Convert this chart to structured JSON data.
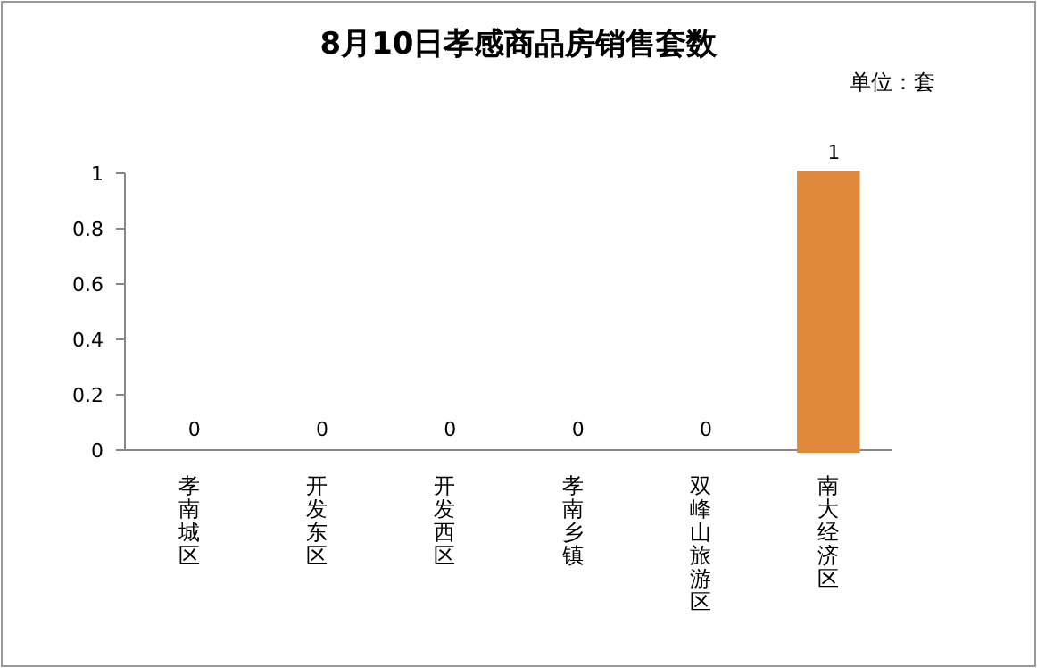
{
  "chart_data": {
    "type": "bar",
    "title": "8月10日孝感商品房销售套数",
    "annotations": [
      "单位：套"
    ],
    "categories": [
      "孝南城区",
      "开发东区",
      "开发西区",
      "孝南乡镇",
      "双峰山旅游区",
      "南大经济区"
    ],
    "values": [
      0,
      0,
      0,
      0,
      0,
      1
    ],
    "colors": [
      "#4f81bd",
      "#c0504d",
      "#9bbb59",
      "#8064a2",
      "#4bacc6",
      "#e0883c"
    ],
    "ylim": [
      0,
      1
    ],
    "yticks": [
      0,
      0.2,
      0.4,
      0.6,
      0.8,
      1
    ],
    "data_labels": true
  }
}
